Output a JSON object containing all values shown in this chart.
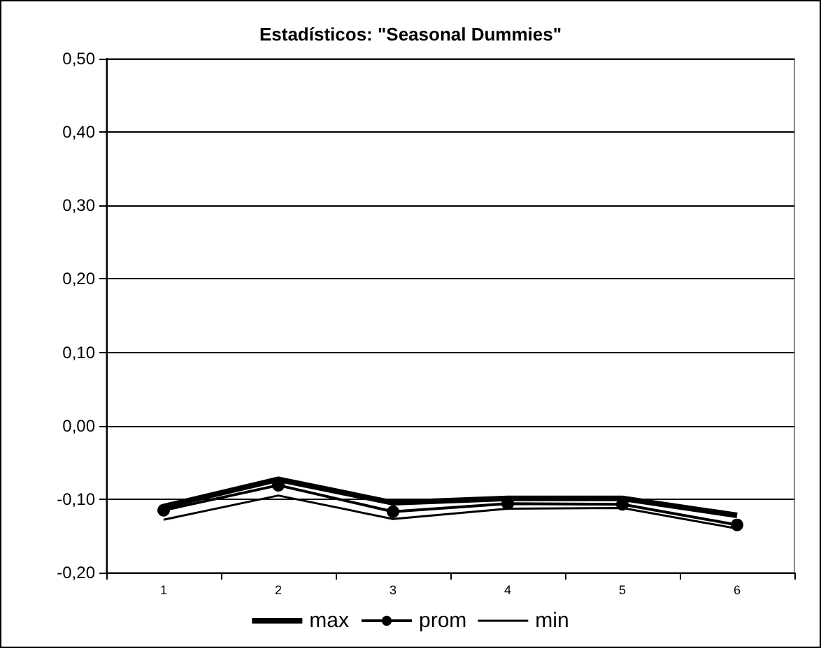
{
  "chart_data": {
    "type": "line",
    "title": "Estadísticos: \"Seasonal Dummies\"",
    "categories": [
      "1",
      "2",
      "3",
      "4",
      "5",
      "6"
    ],
    "series": [
      {
        "name": "max",
        "color": "#000000",
        "marker": "none",
        "values": [
          -0.11,
          -0.073,
          -0.105,
          -0.099,
          -0.099,
          -0.122
        ]
      },
      {
        "name": "prom",
        "color": "#000000",
        "marker": "circle",
        "values": [
          -0.115,
          -0.081,
          -0.117,
          -0.106,
          -0.107,
          -0.135
        ]
      },
      {
        "name": "min",
        "color": "#000000",
        "marker": "none",
        "values": [
          -0.128,
          -0.095,
          -0.127,
          -0.113,
          -0.112,
          -0.14
        ]
      }
    ],
    "ylim": [
      -0.2,
      0.5
    ],
    "yticks": [
      {
        "value": -0.2,
        "label": "-0,20"
      },
      {
        "value": -0.1,
        "label": "-0,10"
      },
      {
        "value": 0,
        "label": "0,00"
      },
      {
        "value": 0.1,
        "label": "0,10"
      },
      {
        "value": 0.2,
        "label": "0,20"
      },
      {
        "value": 0.3,
        "label": "0,30"
      },
      {
        "value": 0.4,
        "label": "0,40"
      },
      {
        "value": 0.5,
        "label": "0,50"
      }
    ],
    "grid": "y",
    "legend": "bottom",
    "line_style": "solid"
  }
}
